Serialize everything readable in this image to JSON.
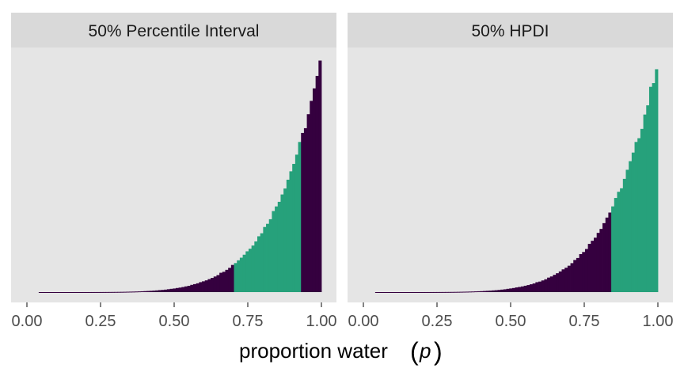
{
  "figure": {
    "xlabel": "proportion water",
    "xlabel_symbol": "p"
  },
  "colors": {
    "panel_bg": "#e5e5e5",
    "strip_bg": "#d9d9d9",
    "strip_text": "#1a1a1a",
    "tick_text": "#4d4d4d",
    "outside_interval": "#35003f",
    "inside_interval": "#26a17b"
  },
  "chart_data": [
    {
      "type": "bar",
      "title": "50% Percentile Interval",
      "xlim": [
        0,
        1
      ],
      "xticks": [
        "0.00",
        "0.25",
        "0.50",
        "0.75",
        "1.00"
      ],
      "x_interval": [
        0.7,
        0.93
      ],
      "distribution": "density proportional to p^6 sampled on a grid of 100 bins from 0.04 to 1.00",
      "legend": "none"
    },
    {
      "type": "bar",
      "title": "50% HPDI",
      "xlim": [
        0,
        1
      ],
      "xticks": [
        "0.00",
        "0.25",
        "0.50",
        "0.75",
        "1.00"
      ],
      "x_interval": [
        0.84,
        1.0
      ],
      "distribution": "density proportional to p^6 sampled on a grid of 100 bins from 0.04 to 1.00",
      "legend": "none"
    }
  ]
}
